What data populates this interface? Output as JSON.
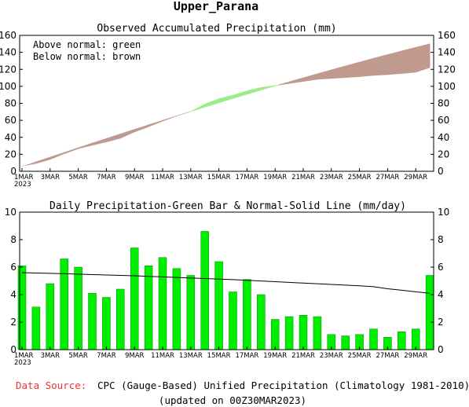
{
  "page": {
    "title": "Upper_Parana",
    "footer_source_label": "Data Source:",
    "footer_source_text": "CPC (Gauge-Based) Unified Precipitation (Climatology 1981-2010)",
    "footer_updated": "(updated on 00Z30MAR2023)"
  },
  "colors": {
    "above_normal": "#99ee88",
    "below_normal": "#c09a8e",
    "bar": "#00ee00",
    "bar_stroke": "#008800",
    "normal_line": "#000000",
    "source_label": "#ee3333"
  },
  "chart_data": [
    {
      "type": "area",
      "title": "Observed Accumulated Precipitation (mm)",
      "legend_notes": [
        "Above normal: green",
        "Below normal: brown"
      ],
      "x": [
        "1MAR",
        "2MAR",
        "3MAR",
        "4MAR",
        "5MAR",
        "6MAR",
        "7MAR",
        "8MAR",
        "9MAR",
        "10MAR",
        "11MAR",
        "12MAR",
        "13MAR",
        "14MAR",
        "15MAR",
        "16MAR",
        "17MAR",
        "18MAR",
        "19MAR",
        "20MAR",
        "21MAR",
        "22MAR",
        "23MAR",
        "24MAR",
        "25MAR",
        "26MAR",
        "27MAR",
        "28MAR",
        "29MAR",
        "30MAR"
      ],
      "x_tick_labels": [
        "1MAR\n2023",
        "3MAR",
        "5MAR",
        "7MAR",
        "9MAR",
        "11MAR",
        "13MAR",
        "15MAR",
        "17MAR",
        "19MAR",
        "21MAR",
        "23MAR",
        "25MAR",
        "27MAR",
        "29MAR"
      ],
      "series": [
        {
          "name": "observed",
          "values": [
            6.1,
            9.2,
            14.0,
            20.6,
            26.6,
            30.7,
            34.5,
            38.9,
            46.3,
            52.4,
            59.1,
            65.0,
            70.4,
            79.0,
            85.4,
            89.6,
            94.7,
            98.7,
            100.9,
            103.3,
            105.8,
            108.2,
            109.3,
            110.3,
            111.4,
            112.9,
            113.8,
            115.1,
            116.6,
            122.0
          ]
        },
        {
          "name": "normal",
          "values": [
            5.6,
            11.2,
            16.7,
            22.2,
            27.7,
            33.2,
            38.6,
            44.0,
            49.4,
            54.7,
            60.0,
            65.2,
            70.4,
            75.5,
            80.6,
            85.7,
            90.7,
            95.6,
            100.5,
            105.3,
            110.1,
            114.8,
            119.4,
            124.0,
            128.5,
            133.0,
            137.4,
            141.7,
            145.9,
            150.0
          ]
        }
      ],
      "ylim": [
        0,
        160
      ],
      "yticks": [
        0,
        20,
        40,
        60,
        80,
        100,
        120,
        140,
        160
      ],
      "grid": false
    },
    {
      "type": "bar",
      "title": "Daily Precipitation-Green Bar & Normal-Solid Line (mm/day)",
      "x": [
        "1MAR",
        "2MAR",
        "3MAR",
        "4MAR",
        "5MAR",
        "6MAR",
        "7MAR",
        "8MAR",
        "9MAR",
        "10MAR",
        "11MAR",
        "12MAR",
        "13MAR",
        "14MAR",
        "15MAR",
        "16MAR",
        "17MAR",
        "18MAR",
        "19MAR",
        "20MAR",
        "21MAR",
        "22MAR",
        "23MAR",
        "24MAR",
        "25MAR",
        "26MAR",
        "27MAR",
        "28MAR",
        "29MAR",
        "30MAR"
      ],
      "x_tick_labels": [
        "1MAR\n2023",
        "3MAR",
        "5MAR",
        "7MAR",
        "9MAR",
        "11MAR",
        "13MAR",
        "15MAR",
        "17MAR",
        "19MAR",
        "21MAR",
        "23MAR",
        "25MAR",
        "27MAR",
        "29MAR"
      ],
      "series": [
        {
          "name": "daily",
          "values": [
            6.1,
            3.1,
            4.8,
            6.6,
            6.0,
            4.1,
            3.8,
            4.4,
            7.4,
            6.1,
            6.7,
            5.9,
            5.4,
            8.6,
            6.4,
            4.2,
            5.1,
            4.0,
            2.2,
            2.4,
            2.5,
            2.4,
            1.1,
            1.0,
            1.1,
            1.5,
            0.9,
            1.3,
            1.5,
            5.4
          ]
        },
        {
          "name": "normal",
          "values": [
            5.6,
            5.57,
            5.55,
            5.52,
            5.49,
            5.46,
            5.43,
            5.4,
            5.37,
            5.33,
            5.29,
            5.25,
            5.21,
            5.17,
            5.13,
            5.09,
            5.04,
            4.99,
            4.94,
            4.89,
            4.84,
            4.79,
            4.74,
            4.69,
            4.64,
            4.58,
            4.43,
            4.32,
            4.21,
            4.1
          ]
        }
      ],
      "ylim": [
        0,
        10
      ],
      "yticks": [
        0,
        2,
        4,
        6,
        8,
        10
      ],
      "grid": false
    }
  ]
}
